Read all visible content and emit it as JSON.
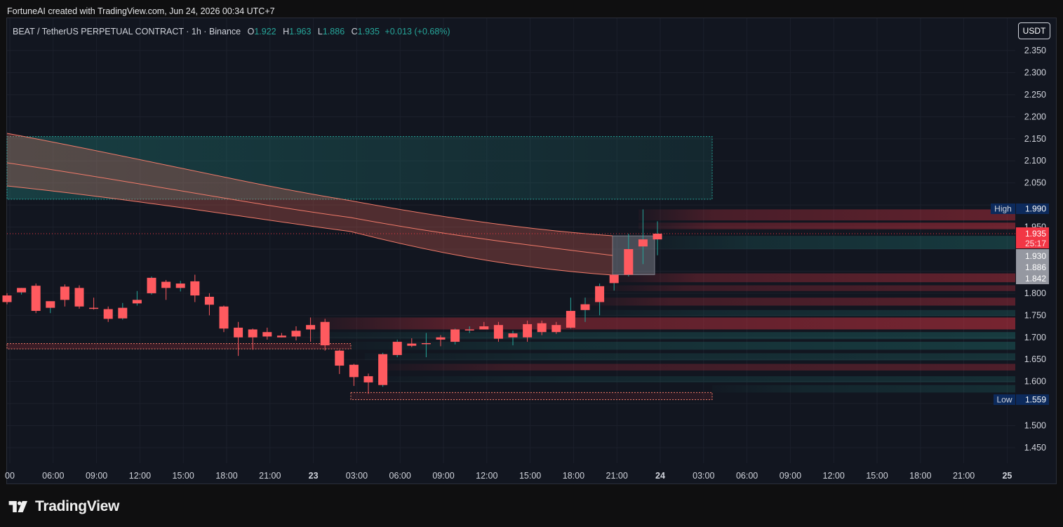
{
  "header": {
    "attribution": "FortuneAI created with TradingView.com, Jun 24, 2026 00:34 UTC+7"
  },
  "legend": {
    "symbol": "BEAT / TetherUS PERPETUAL CONTRACT · 1h · Binance",
    "open_label": "O",
    "open": "1.922",
    "high_label": "H",
    "high": "1.963",
    "low_label": "L",
    "low": "1.886",
    "close_label": "C",
    "close": "1.935",
    "change": "+0.013 (+0.68%)"
  },
  "currency_button": "USDT",
  "price_tags": {
    "high_label": "High",
    "high_value": "1.990",
    "low_label": "Low",
    "low_value": "1.559",
    "last_price": "1.935",
    "countdown": "25:17",
    "box_top": "1.930",
    "box_mid": "1.886",
    "box_bottom": "1.842"
  },
  "colors": {
    "up": "#26a69a",
    "down": "#f23645",
    "candle_body": "#ff5a5f",
    "background": "#121620",
    "grid": "#1e222d",
    "label_tag": "#0c2a5c"
  },
  "brand": {
    "name": "TradingView"
  },
  "chart_data": {
    "type": "candlestick",
    "interval": "1h",
    "ylim": [
      1.42,
      2.39
    ],
    "y_ticks": [
      "2.350",
      "2.300",
      "2.250",
      "2.200",
      "2.150",
      "2.100",
      "2.050",
      "1.950",
      "1.800",
      "1.750",
      "1.700",
      "1.650",
      "1.600",
      "1.500",
      "1.450"
    ],
    "x_ticks": [
      "00",
      "06:00",
      "09:00",
      "12:00",
      "15:00",
      "18:00",
      "21:00",
      "23",
      "03:00",
      "06:00",
      "09:00",
      "12:00",
      "15:00",
      "18:00",
      "21:00",
      "24",
      "03:00",
      "06:00",
      "09:00",
      "12:00",
      "15:00",
      "18:00",
      "21:00",
      "25"
    ],
    "x_ticks_bold": [
      "23",
      "24",
      "25"
    ],
    "candles": [
      {
        "o": 1.795,
        "h": 1.8,
        "l": 1.775,
        "c": 1.78
      },
      {
        "o": 1.802,
        "h": 1.812,
        "l": 1.797,
        "c": 1.812
      },
      {
        "o": 1.817,
        "h": 1.822,
        "l": 1.755,
        "c": 1.76
      },
      {
        "o": 1.767,
        "h": 1.775,
        "l": 1.755,
        "c": 1.782
      },
      {
        "o": 1.815,
        "h": 1.82,
        "l": 1.77,
        "c": 1.785
      },
      {
        "o": 1.812,
        "h": 1.818,
        "l": 1.765,
        "c": 1.77
      },
      {
        "o": 1.767,
        "h": 1.79,
        "l": 1.763,
        "c": 1.765
      },
      {
        "o": 1.764,
        "h": 1.77,
        "l": 1.735,
        "c": 1.742
      },
      {
        "o": 1.743,
        "h": 1.778,
        "l": 1.74,
        "c": 1.767
      },
      {
        "o": 1.777,
        "h": 1.805,
        "l": 1.772,
        "c": 1.785
      },
      {
        "o": 1.8,
        "h": 1.838,
        "l": 1.797,
        "c": 1.835
      },
      {
        "o": 1.826,
        "h": 1.83,
        "l": 1.785,
        "c": 1.812
      },
      {
        "o": 1.812,
        "h": 1.828,
        "l": 1.804,
        "c": 1.822
      },
      {
        "o": 1.827,
        "h": 1.842,
        "l": 1.78,
        "c": 1.795
      },
      {
        "o": 1.792,
        "h": 1.8,
        "l": 1.75,
        "c": 1.774
      },
      {
        "o": 1.77,
        "h": 1.772,
        "l": 1.712,
        "c": 1.72
      },
      {
        "o": 1.722,
        "h": 1.735,
        "l": 1.658,
        "c": 1.7
      },
      {
        "o": 1.718,
        "h": 1.72,
        "l": 1.672,
        "c": 1.7
      },
      {
        "o": 1.712,
        "h": 1.722,
        "l": 1.695,
        "c": 1.702
      },
      {
        "o": 1.704,
        "h": 1.71,
        "l": 1.7,
        "c": 1.7
      },
      {
        "o": 1.715,
        "h": 1.725,
        "l": 1.693,
        "c": 1.702
      },
      {
        "o": 1.728,
        "h": 1.745,
        "l": 1.69,
        "c": 1.718
      },
      {
        "o": 1.735,
        "h": 1.742,
        "l": 1.67,
        "c": 1.682
      },
      {
        "o": 1.67,
        "h": 1.672,
        "l": 1.617,
        "c": 1.636
      },
      {
        "o": 1.638,
        "h": 1.64,
        "l": 1.59,
        "c": 1.61
      },
      {
        "o": 1.612,
        "h": 1.618,
        "l": 1.572,
        "c": 1.598
      },
      {
        "o": 1.592,
        "h": 1.665,
        "l": 1.588,
        "c": 1.662
      },
      {
        "o": 1.66,
        "h": 1.695,
        "l": 1.655,
        "c": 1.69
      },
      {
        "o": 1.686,
        "h": 1.698,
        "l": 1.678,
        "c": 1.681
      },
      {
        "o": 1.685,
        "h": 1.71,
        "l": 1.655,
        "c": 1.687
      },
      {
        "o": 1.7,
        "h": 1.705,
        "l": 1.68,
        "c": 1.695
      },
      {
        "o": 1.69,
        "h": 1.72,
        "l": 1.684,
        "c": 1.718
      },
      {
        "o": 1.716,
        "h": 1.725,
        "l": 1.71,
        "c": 1.718
      },
      {
        "o": 1.725,
        "h": 1.735,
        "l": 1.718,
        "c": 1.718
      },
      {
        "o": 1.728,
        "h": 1.735,
        "l": 1.69,
        "c": 1.697
      },
      {
        "o": 1.7,
        "h": 1.715,
        "l": 1.682,
        "c": 1.709
      },
      {
        "o": 1.73,
        "h": 1.738,
        "l": 1.69,
        "c": 1.7
      },
      {
        "o": 1.732,
        "h": 1.738,
        "l": 1.705,
        "c": 1.712
      },
      {
        "o": 1.728,
        "h": 1.735,
        "l": 1.708,
        "c": 1.712
      },
      {
        "o": 1.722,
        "h": 1.79,
        "l": 1.72,
        "c": 1.76
      },
      {
        "o": 1.762,
        "h": 1.79,
        "l": 1.735,
        "c": 1.775
      },
      {
        "o": 1.78,
        "h": 1.822,
        "l": 1.75,
        "c": 1.816
      },
      {
        "o": 1.823,
        "h": 1.84,
        "l": 1.806,
        "c": 1.842
      },
      {
        "o": 1.842,
        "h": 1.935,
        "l": 1.838,
        "c": 1.9
      },
      {
        "o": 1.906,
        "h": 1.99,
        "l": 1.866,
        "c": 1.922
      },
      {
        "o": 1.922,
        "h": 1.963,
        "l": 1.886,
        "c": 1.935
      }
    ],
    "candle_x_start": 10,
    "candle_x_step": 20.6,
    "zones": [
      {
        "type": "supply",
        "y_top": 2.155,
        "y_bottom": 2.013
      },
      {
        "type": "sr",
        "y_top": 1.686,
        "y_bottom": 1.674
      },
      {
        "type": "sr",
        "y_top": 1.575,
        "y_bottom": 1.559
      }
    ]
  }
}
